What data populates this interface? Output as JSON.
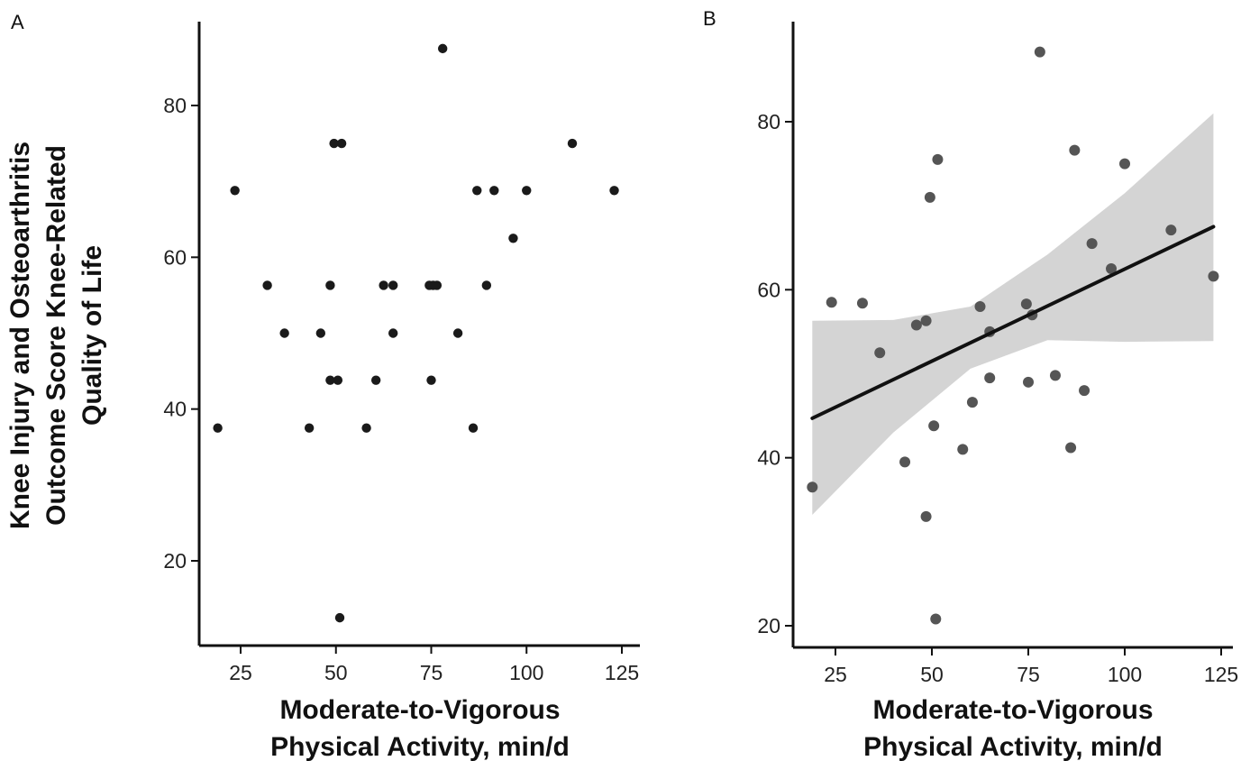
{
  "figure": {
    "ylabel_lines": [
      "Knee Injury and Osteoarthritis",
      "Outcome Score Knee-Related",
      "Quality of Life"
    ]
  },
  "chart_data": [
    {
      "panel": "A",
      "type": "scatter",
      "title": "",
      "xlabel_lines": [
        "Moderate-to-Vigorous",
        "Physical Activity, min/d"
      ],
      "ylabel": "Knee Injury and Osteoarthritis Outcome Score Knee-Related Quality of Life",
      "xlim": [
        14,
        128
      ],
      "ylim": [
        8,
        92
      ],
      "xticks": [
        25,
        50,
        75,
        100,
        125
      ],
      "yticks": [
        20,
        40,
        60,
        80
      ],
      "grid": false,
      "point_color": "#1a1a1a",
      "points": [
        {
          "x": 19,
          "y": 37.5
        },
        {
          "x": 23.5,
          "y": 68.8
        },
        {
          "x": 32,
          "y": 56.3
        },
        {
          "x": 36.5,
          "y": 50
        },
        {
          "x": 43,
          "y": 37.5
        },
        {
          "x": 46,
          "y": 50
        },
        {
          "x": 48.5,
          "y": 56.3
        },
        {
          "x": 48.5,
          "y": 43.8
        },
        {
          "x": 49.5,
          "y": 75
        },
        {
          "x": 50.5,
          "y": 43.8
        },
        {
          "x": 51,
          "y": 12.5
        },
        {
          "x": 51.5,
          "y": 75
        },
        {
          "x": 58,
          "y": 37.5
        },
        {
          "x": 60.5,
          "y": 43.8
        },
        {
          "x": 62.5,
          "y": 56.3
        },
        {
          "x": 65,
          "y": 56.3
        },
        {
          "x": 65,
          "y": 50
        },
        {
          "x": 74.5,
          "y": 56.3
        },
        {
          "x": 75,
          "y": 43.8
        },
        {
          "x": 75.5,
          "y": 56.3
        },
        {
          "x": 76.5,
          "y": 56.3
        },
        {
          "x": 78,
          "y": 87.5
        },
        {
          "x": 82,
          "y": 50
        },
        {
          "x": 86,
          "y": 37.5
        },
        {
          "x": 87,
          "y": 68.8
        },
        {
          "x": 89.5,
          "y": 56.3
        },
        {
          "x": 91.5,
          "y": 68.8
        },
        {
          "x": 96.5,
          "y": 62.5
        },
        {
          "x": 100,
          "y": 68.8
        },
        {
          "x": 112,
          "y": 75
        },
        {
          "x": 123,
          "y": 68.8
        }
      ]
    },
    {
      "panel": "B",
      "type": "scatter",
      "title": "",
      "xlabel_lines": [
        "Moderate-to-Vigorous",
        "Physical Activity, min/d"
      ],
      "ylabel": "",
      "xlim": [
        14,
        128
      ],
      "ylim": [
        18,
        92
      ],
      "xticks": [
        25,
        50,
        75,
        100,
        125
      ],
      "yticks": [
        20,
        40,
        60,
        80
      ],
      "grid": false,
      "point_color": "#555555",
      "band_color": "#d4d4d4",
      "line_color": "#111111",
      "points": [
        {
          "x": 19,
          "y": 36.5
        },
        {
          "x": 24,
          "y": 58.5
        },
        {
          "x": 32,
          "y": 58.4
        },
        {
          "x": 36.5,
          "y": 52.5
        },
        {
          "x": 43,
          "y": 39.5
        },
        {
          "x": 46,
          "y": 55.8
        },
        {
          "x": 48.5,
          "y": 56.3
        },
        {
          "x": 48.5,
          "y": 33
        },
        {
          "x": 49.5,
          "y": 71
        },
        {
          "x": 50.5,
          "y": 43.8
        },
        {
          "x": 51,
          "y": 20.8
        },
        {
          "x": 51.5,
          "y": 75.5
        },
        {
          "x": 58,
          "y": 41
        },
        {
          "x": 60.5,
          "y": 46.6
        },
        {
          "x": 62.5,
          "y": 58
        },
        {
          "x": 65,
          "y": 55
        },
        {
          "x": 65,
          "y": 49.5
        },
        {
          "x": 74.5,
          "y": 58.3
        },
        {
          "x": 75,
          "y": 49
        },
        {
          "x": 76,
          "y": 57
        },
        {
          "x": 78,
          "y": 88.3
        },
        {
          "x": 82,
          "y": 49.8
        },
        {
          "x": 86,
          "y": 41.2
        },
        {
          "x": 87,
          "y": 76.6
        },
        {
          "x": 89.5,
          "y": 48
        },
        {
          "x": 91.5,
          "y": 65.5
        },
        {
          "x": 96.5,
          "y": 62.5
        },
        {
          "x": 100,
          "y": 75
        },
        {
          "x": 112,
          "y": 67.1
        },
        {
          "x": 123,
          "y": 61.6
        }
      ],
      "fit_line": {
        "x": [
          19,
          123
        ],
        "y": [
          44.7,
          67.5
        ]
      },
      "confidence_band": {
        "x": [
          19,
          40,
          60,
          80,
          100,
          123
        ],
        "lower": [
          33.2,
          43.0,
          50.6,
          54.0,
          53.8,
          53.9
        ],
        "upper": [
          56.3,
          56.4,
          58.0,
          64.2,
          71.5,
          81.0
        ]
      }
    }
  ]
}
